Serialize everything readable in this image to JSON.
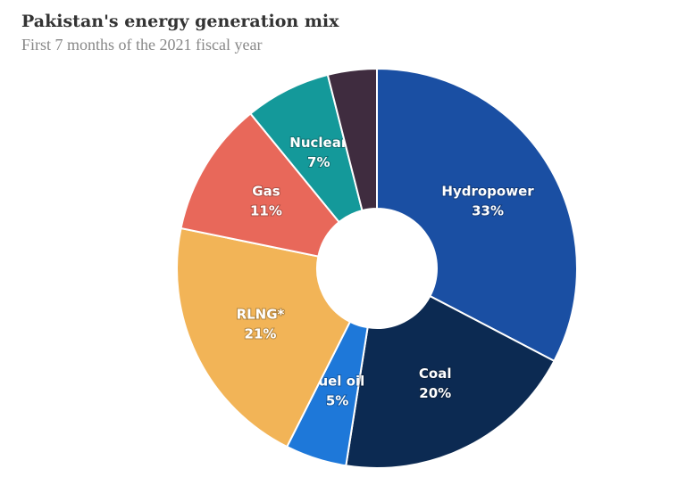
{
  "chart_data": {
    "type": "donut",
    "title": "Pakistan's energy generation mix",
    "subtitle": "First 7 months of the 2021 fiscal year",
    "categories": [
      "Hydropower",
      "Coal",
      "Fuel oil",
      "RLNG*",
      "Gas",
      "Nuclear",
      null
    ],
    "values": [
      33,
      20,
      5,
      21,
      11,
      7,
      4
    ],
    "value_labels": [
      "33%",
      "20%",
      "5%",
      "21%",
      "11%",
      "7%",
      null
    ],
    "colors": [
      "#1a4fa3",
      "#0c2a52",
      "#1e78d9",
      "#f2b457",
      "#e8685a",
      "#14999a",
      "#3f2c3f"
    ]
  }
}
